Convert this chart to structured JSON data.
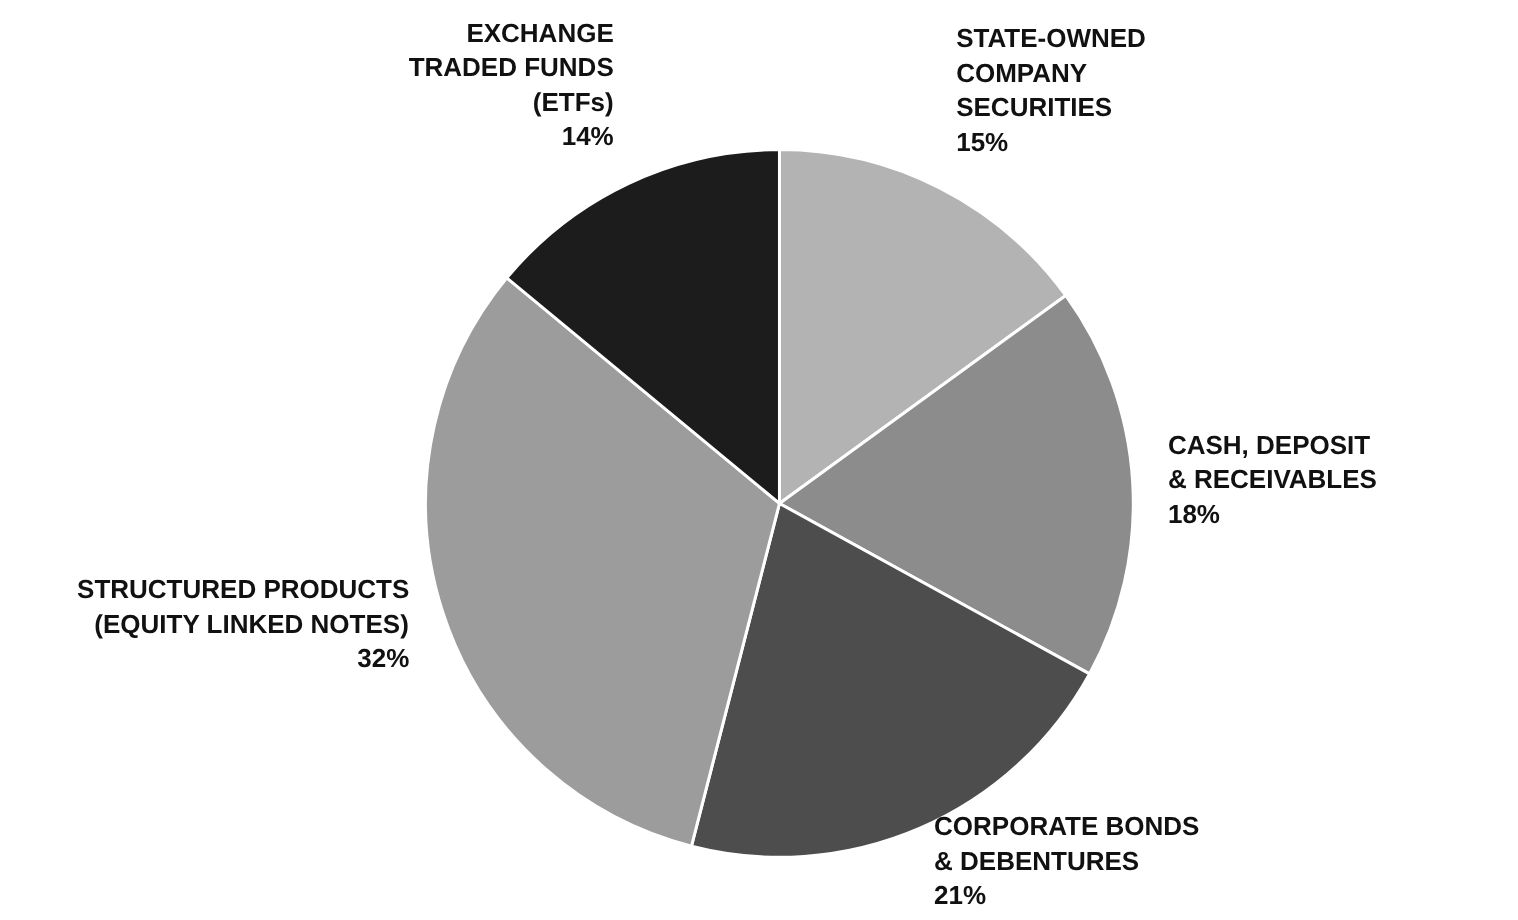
{
  "chart_data": {
    "type": "pie",
    "categories": [
      "STATE-OWNED\nCOMPANY\nSECURITIES",
      "CASH, DEPOSIT\n& RECEIVABLES",
      "CORPORATE BONDS\n& DEBENTURES",
      "STRUCTURED PRODUCTS\n(EQUITY LINKED NOTES)",
      "EXCHANGE\nTRADED FUNDS\n(ETFs)"
    ],
    "values": [
      15,
      18,
      21,
      32,
      14
    ],
    "value_labels": [
      "15%",
      "18%",
      "21%",
      "32%",
      "14%"
    ],
    "colors": [
      "#b3b3b3",
      "#8c8c8c",
      "#4d4d4d",
      "#9c9c9c",
      "#1c1c1c"
    ]
  }
}
